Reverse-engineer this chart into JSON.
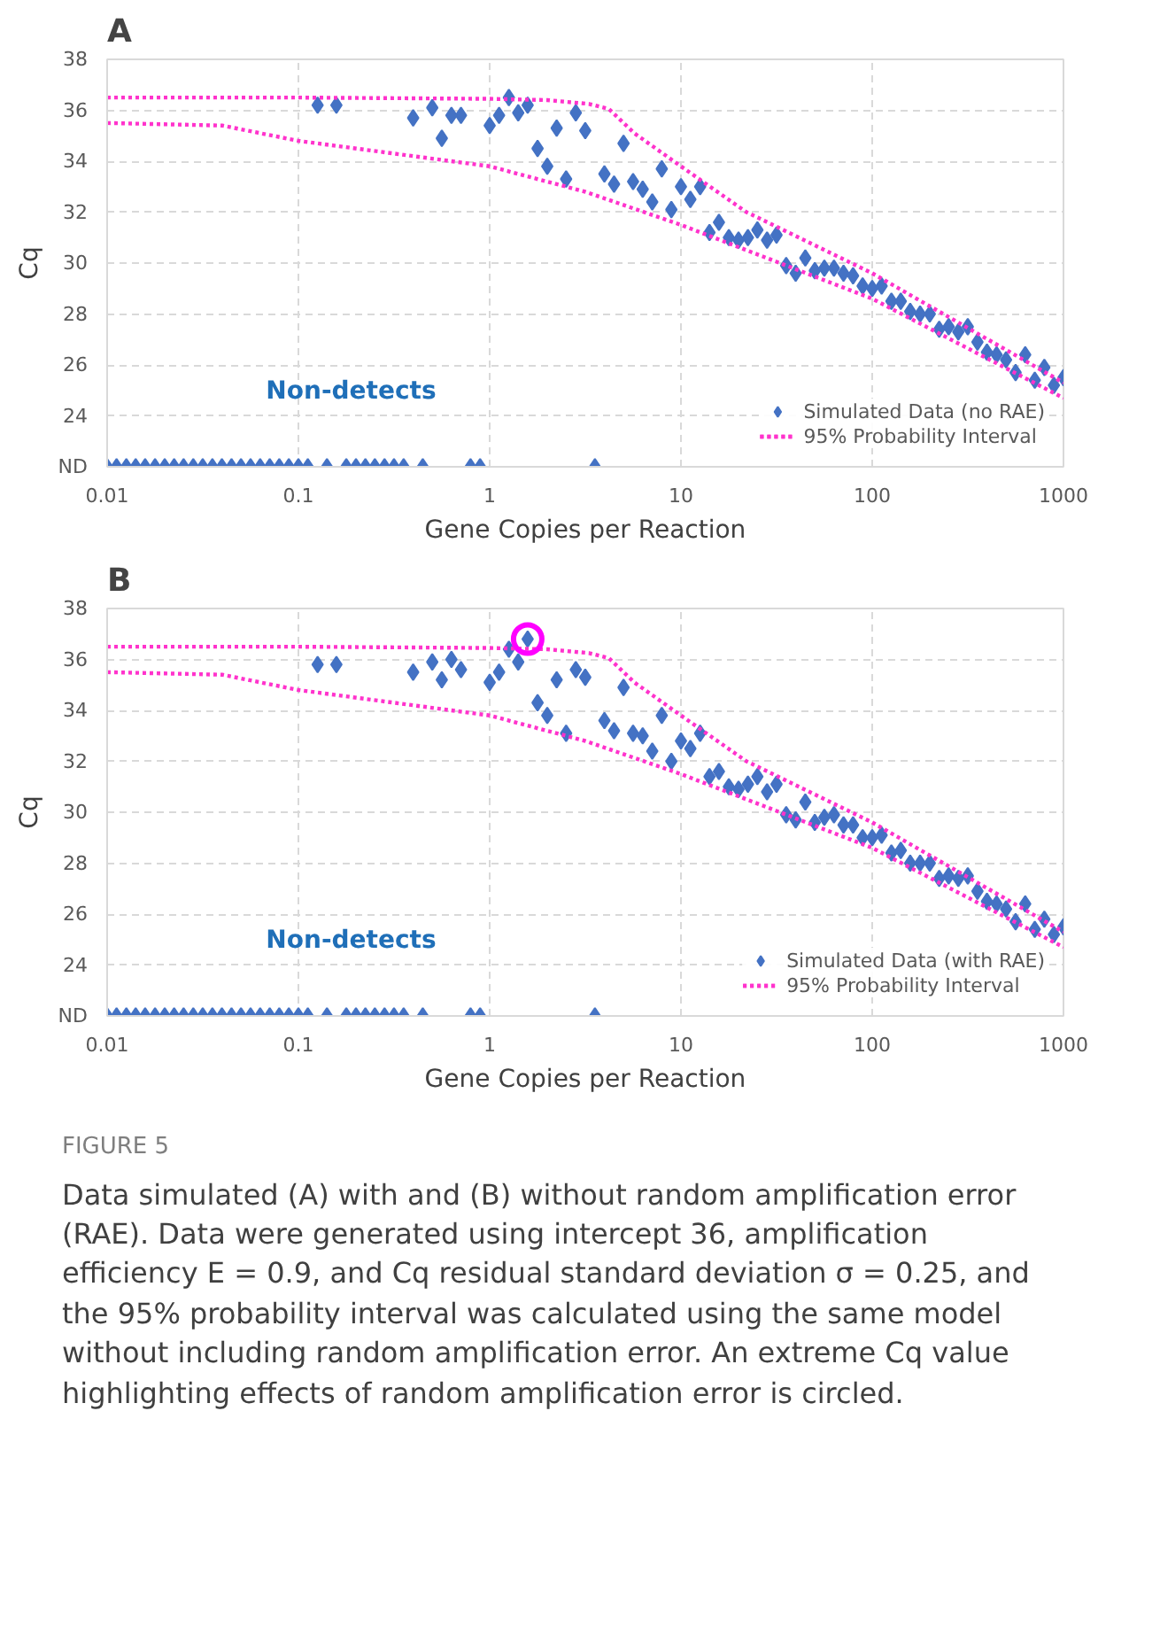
{
  "chart_data": [
    {
      "type": "scatter",
      "title": "A",
      "xlabel": "Gene Copies per Reaction",
      "ylabel": "Cq",
      "log": "x",
      "xlim": [
        0.01,
        1000
      ],
      "xticks": [
        0.01,
        0.1,
        1,
        10,
        100,
        1000
      ],
      "ylim": [
        22,
        38
      ],
      "yticks": [
        {
          "value": 22,
          "label": "ND"
        },
        24,
        26,
        28,
        30,
        32,
        34,
        36,
        38
      ],
      "grid": true,
      "legend": "bottom right",
      "annotations": [
        "Non-detects"
      ],
      "series": [
        {
          "name": "Simulated Data (no RAE)",
          "marker": "diamond",
          "color": "#4472c4",
          "x": [
            0.01,
            0.0112,
            0.0126,
            0.0141,
            0.0158,
            0.0178,
            0.02,
            0.0224,
            0.0251,
            0.0282,
            0.0316,
            0.0355,
            0.0398,
            0.0447,
            0.0501,
            0.0562,
            0.0631,
            0.0708,
            0.0794,
            0.0891,
            0.1,
            0.112,
            0.126,
            0.141,
            0.158,
            0.178,
            0.2,
            0.224,
            0.251,
            0.282,
            0.316,
            0.355,
            0.398,
            0.447,
            0.501,
            0.562,
            0.631,
            0.708,
            0.794,
            0.891,
            1,
            1.12,
            1.26,
            1.41,
            1.58,
            1.78,
            2.0,
            2.24,
            2.51,
            2.82,
            3.16,
            3.55,
            3.98,
            4.47,
            5.01,
            5.62,
            6.31,
            7.08,
            7.94,
            8.91,
            10,
            11.2,
            12.6,
            14.1,
            15.8,
            17.8,
            20,
            22.4,
            25.1,
            28.2,
            31.6,
            35.5,
            39.8,
            44.7,
            50.1,
            56.2,
            63.1,
            70.8,
            79.4,
            89.1,
            100,
            112,
            126,
            141,
            158,
            178,
            200,
            224,
            251,
            282,
            316,
            355,
            398,
            447,
            501,
            562,
            631,
            708,
            794,
            891,
            1000
          ],
          "values": [
            22,
            22,
            22,
            22,
            22,
            22,
            22,
            22,
            22,
            22,
            22,
            22,
            22,
            22,
            22,
            22,
            22,
            22,
            22,
            22,
            22,
            22,
            36.2,
            22,
            36.2,
            22,
            22,
            22,
            22,
            22,
            22,
            22,
            35.7,
            22,
            36.1,
            34.9,
            35.8,
            35.8,
            22,
            22,
            35.4,
            35.8,
            36.5,
            35.9,
            36.2,
            34.5,
            33.8,
            35.3,
            33.3,
            35.9,
            35.2,
            22,
            33.5,
            33.1,
            34.7,
            33.2,
            32.9,
            32.4,
            33.7,
            32.1,
            33.0,
            32.5,
            33.0,
            31.2,
            31.6,
            31.0,
            30.9,
            31.0,
            31.3,
            30.9,
            31.1,
            29.9,
            29.6,
            30.2,
            29.7,
            29.8,
            29.8,
            29.6,
            29.5,
            29.1,
            29.0,
            29.1,
            28.5,
            28.5,
            28.1,
            28.0,
            28.0,
            27.4,
            27.5,
            27.3,
            27.5,
            26.9,
            26.5,
            26.4,
            26.2,
            25.7,
            26.4,
            25.4,
            25.9,
            25.2,
            25.5
          ]
        },
        {
          "name": "95% Probability Interval",
          "type": "line",
          "line_style": "dotted",
          "color": "#ff33cc",
          "x": [
            0.01,
            0.1,
            1,
            2,
            3.3,
            4.2,
            5.7,
            10,
            22,
            100,
            1000
          ],
          "values": [
            36.5,
            36.5,
            36.45,
            36.4,
            36.25,
            36.05,
            35.1,
            33.8,
            32.0,
            29.6,
            25.3
          ]
        },
        {
          "name": "95% Probability Interval",
          "type": "line",
          "line_style": "dotted",
          "color": "#ff33cc",
          "x": [
            0.01,
            0.04,
            0.1,
            1,
            3.16,
            10,
            100,
            1000
          ],
          "values": [
            35.5,
            35.4,
            34.8,
            33.8,
            32.8,
            31.5,
            28.6,
            24.7
          ]
        }
      ]
    },
    {
      "type": "scatter",
      "title": "B",
      "xlabel": "Gene Copies per Reaction",
      "ylabel": "Cq",
      "log": "x",
      "xlim": [
        0.01,
        1000
      ],
      "xticks": [
        0.01,
        0.1,
        1,
        10,
        100,
        1000
      ],
      "ylim": [
        22,
        38
      ],
      "yticks": [
        {
          "value": 22,
          "label": "ND"
        },
        24,
        26,
        28,
        30,
        32,
        34,
        36,
        38
      ],
      "grid": true,
      "legend": "bottom right",
      "annotations": [
        "Non-detects",
        "FIGURE 5",
        "Data simulated (A) with and (B) without random amplification error (RAE). Data were generated using intercept 36, amplification efficiency E = 0.9, and Cq residual standard deviation σ = 0.25, and the 95% probability interval was calculated using the same model without including random amplification error. An extreme Cq value highlighting effects of random amplification error is circled."
      ],
      "series": [
        {
          "name": "Simulated Data (with RAE)",
          "marker": "diamond",
          "color": "#4472c4",
          "x": [
            0.01,
            0.0112,
            0.0126,
            0.0141,
            0.0158,
            0.0178,
            0.02,
            0.0224,
            0.0251,
            0.0282,
            0.0316,
            0.0355,
            0.0398,
            0.0447,
            0.0501,
            0.0562,
            0.0631,
            0.0708,
            0.0794,
            0.0891,
            0.1,
            0.112,
            0.126,
            0.141,
            0.158,
            0.178,
            0.2,
            0.224,
            0.251,
            0.282,
            0.316,
            0.355,
            0.398,
            0.447,
            0.501,
            0.562,
            0.631,
            0.708,
            0.794,
            0.891,
            1,
            1.12,
            1.26,
            1.41,
            1.58,
            1.78,
            2.0,
            2.24,
            2.51,
            2.82,
            3.16,
            3.55,
            3.98,
            4.47,
            5.01,
            5.62,
            6.31,
            7.08,
            7.94,
            8.91,
            10,
            11.2,
            12.6,
            14.1,
            15.8,
            17.8,
            20,
            22.4,
            25.1,
            28.2,
            31.6,
            35.5,
            39.8,
            44.7,
            50.1,
            56.2,
            63.1,
            70.8,
            79.4,
            89.1,
            100,
            112,
            126,
            141,
            158,
            178,
            200,
            224,
            251,
            282,
            316,
            355,
            398,
            447,
            501,
            562,
            631,
            708,
            794,
            891,
            1000
          ],
          "values": [
            22,
            22,
            22,
            22,
            22,
            22,
            22,
            22,
            22,
            22,
            22,
            22,
            22,
            22,
            22,
            22,
            22,
            22,
            22,
            22,
            22,
            22,
            35.8,
            22,
            35.8,
            22,
            22,
            22,
            22,
            22,
            22,
            22,
            35.5,
            22,
            35.9,
            35.2,
            36.0,
            35.6,
            22,
            22,
            35.1,
            35.5,
            36.4,
            35.9,
            36.8,
            34.3,
            33.8,
            35.2,
            33.1,
            35.6,
            35.3,
            22,
            33.6,
            33.2,
            34.9,
            33.1,
            33.0,
            32.4,
            33.8,
            32.0,
            32.8,
            32.5,
            33.1,
            31.4,
            31.6,
            31.0,
            30.9,
            31.1,
            31.4,
            30.8,
            31.1,
            29.9,
            29.7,
            30.4,
            29.6,
            29.8,
            29.9,
            29.5,
            29.5,
            29.0,
            29.0,
            29.1,
            28.4,
            28.5,
            28.0,
            28.0,
            28.0,
            27.4,
            27.5,
            27.4,
            27.5,
            26.9,
            26.5,
            26.4,
            26.2,
            25.7,
            26.4,
            25.4,
            25.8,
            25.2,
            25.5
          ]
        },
        {
          "name": "95% Probability Interval",
          "type": "line",
          "line_style": "dotted",
          "color": "#ff33cc",
          "x": [
            0.01,
            0.1,
            1,
            2,
            3.3,
            4.2,
            5.7,
            10,
            22,
            100,
            1000
          ],
          "values": [
            36.5,
            36.5,
            36.45,
            36.4,
            36.25,
            36.05,
            35.1,
            33.8,
            32.0,
            29.6,
            25.3
          ]
        },
        {
          "name": "95% Probability Interval",
          "type": "line",
          "line_style": "dotted",
          "color": "#ff33cc",
          "x": [
            0.01,
            0.04,
            0.1,
            1,
            3.16,
            10,
            100,
            1000
          ],
          "values": [
            35.5,
            35.4,
            34.8,
            33.8,
            32.8,
            31.5,
            28.6,
            24.7
          ]
        },
        {
          "marker": "circle",
          "color": "#ff00ff",
          "x": [
            1.58
          ],
          "values": [
            36.8
          ]
        }
      ]
    }
  ]
}
